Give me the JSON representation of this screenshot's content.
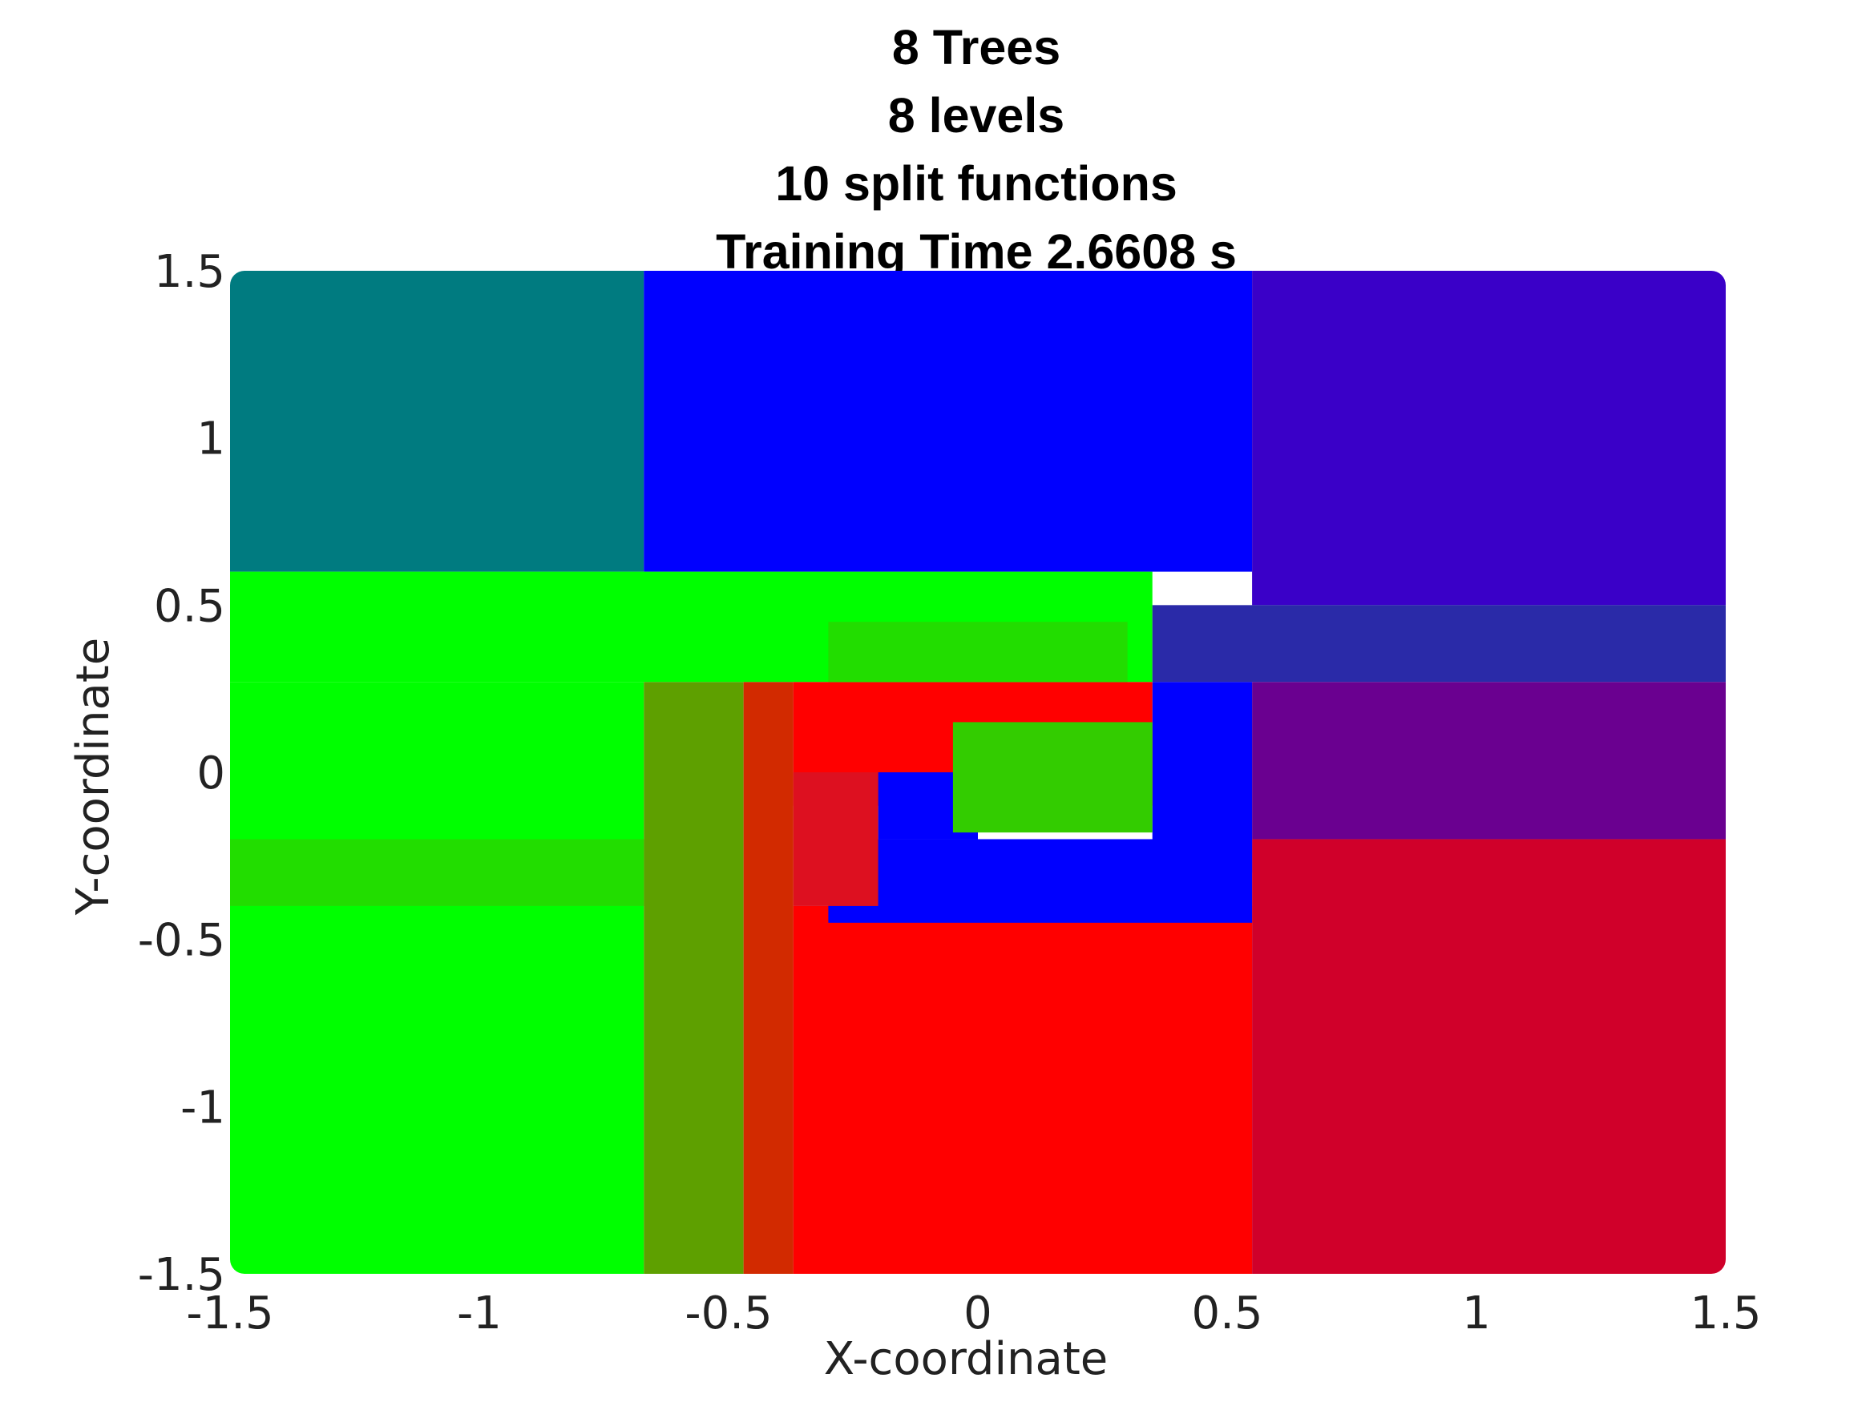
{
  "chart_data": {
    "type": "heatmap",
    "title_lines": [
      "8 Trees",
      "8 levels",
      "10 split functions",
      "Training Time 2.6608 s"
    ],
    "xlabel": "X-coordinate",
    "ylabel": "Y-coordinate",
    "xlim": [
      -1.5,
      1.5
    ],
    "ylim": [
      -1.5,
      1.5
    ],
    "x_ticks": [
      -1.5,
      -1,
      -0.5,
      0,
      0.5,
      1,
      1.5
    ],
    "x_tick_labels": [
      "-1.5",
      "-1",
      "-0.5",
      "0",
      "0.5",
      "1",
      "1.5"
    ],
    "y_ticks": [
      1.5,
      1,
      0.5,
      0,
      -0.5,
      -1,
      -1.5
    ],
    "y_tick_labels": [
      "1.5",
      "1",
      "0.5",
      "0",
      "-0.5",
      "-1",
      "-1.5"
    ],
    "grid": false,
    "legend": "none",
    "colors": {
      "teal": "#007b80",
      "blue": "#0000ff",
      "indigo": "#3a00c8",
      "green": "#00ff00",
      "green2": "#22dd00",
      "red": "#ff0000",
      "crimson": "#d0002a",
      "purple": "#6a0090"
    },
    "regions": [
      {
        "x": [
          -1.5,
          -0.67
        ],
        "y": [
          0.6,
          1.5
        ],
        "color": "#007b80"
      },
      {
        "x": [
          -0.67,
          0.55
        ],
        "y": [
          0.6,
          1.5
        ],
        "color": "#0000ff"
      },
      {
        "x": [
          0.55,
          1.5
        ],
        "y": [
          0.5,
          1.5
        ],
        "color": "#3a00c8"
      },
      {
        "x": [
          -1.5,
          0.35
        ],
        "y": [
          0.27,
          0.6
        ],
        "color": "#00ff00"
      },
      {
        "x": [
          0.35,
          1.5
        ],
        "y": [
          0.27,
          0.5
        ],
        "color": "#2a2aa8"
      },
      {
        "x": [
          -1.5,
          -0.67
        ],
        "y": [
          -0.4,
          0.27
        ],
        "color": "#00ff00"
      },
      {
        "x": [
          -1.5,
          -0.67
        ],
        "y": [
          -0.4,
          -0.2
        ],
        "color": "#22dd00"
      },
      {
        "x": [
          -1.5,
          -0.67
        ],
        "y": [
          -1.5,
          -0.4
        ],
        "color": "#00ff00"
      },
      {
        "x": [
          -0.67,
          -0.47
        ],
        "y": [
          -1.5,
          0.27
        ],
        "color": "#5ea000"
      },
      {
        "x": [
          -0.47,
          -0.37
        ],
        "y": [
          -1.5,
          0.27
        ],
        "color": "#d22a00"
      },
      {
        "x": [
          -0.37,
          0.55
        ],
        "y": [
          -1.5,
          -0.4
        ],
        "color": "#ff0000"
      },
      {
        "x": [
          0.55,
          1.5
        ],
        "y": [
          -1.5,
          -0.2
        ],
        "color": "#d0002a"
      },
      {
        "x": [
          0.55,
          1.5
        ],
        "y": [
          -0.2,
          0.27
        ],
        "color": "#6a0090"
      },
      {
        "x": [
          0.35,
          0.55
        ],
        "y": [
          -0.3,
          0.27
        ],
        "color": "#0000ff"
      },
      {
        "x": [
          -0.37,
          0.35
        ],
        "y": [
          -0.1,
          0.27
        ],
        "color": "#ff0000"
      },
      {
        "x": [
          -0.3,
          0.55
        ],
        "y": [
          -0.45,
          -0.2
        ],
        "color": "#0000ff"
      },
      {
        "x": [
          -0.2,
          0.0
        ],
        "y": [
          -0.2,
          0.0
        ],
        "color": "#0000ff"
      },
      {
        "x": [
          -0.05,
          0.35
        ],
        "y": [
          -0.18,
          0.15
        ],
        "color": "#33cc00"
      },
      {
        "x": [
          -0.37,
          -0.2
        ],
        "y": [
          -0.4,
          0.0
        ],
        "color": "#dd1020"
      },
      {
        "x": [
          -0.3,
          0.3
        ],
        "y": [
          0.27,
          0.45
        ],
        "color": "#22dd00"
      }
    ]
  }
}
